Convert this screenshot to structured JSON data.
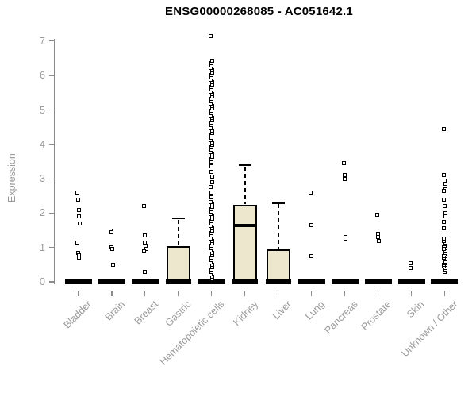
{
  "page": {
    "background": "#ffffff"
  },
  "chart_data": {
    "type": "boxplot",
    "title": "ENSG00000268085 - AC051642.1",
    "ylabel": "Expression",
    "xlabel": "",
    "ylim": [
      0,
      7
    ],
    "yticks": [
      0,
      1,
      2,
      3,
      4,
      5,
      6,
      7
    ],
    "grid": false,
    "legend_position": "none",
    "box_fill": "#ece7cd",
    "box_border": "#000000",
    "axis_color": "#8a8a8a",
    "tick_label_color": "#9a9a9a",
    "title_color": "#000000",
    "categories": [
      "Bladder",
      "Brain",
      "Breast",
      "Gastric",
      "Hematopoietic cells",
      "Kidney",
      "Liver",
      "Lung",
      "Pancreas",
      "Prostate",
      "Skin",
      "Unknown / Other"
    ],
    "series": [
      {
        "category": "Bladder",
        "q1": 0,
        "median": 0,
        "q3": 0,
        "whisker_low": 0,
        "whisker_high": 0,
        "outliers": [
          2.6,
          2.4,
          2.1,
          1.9,
          1.7,
          1.15,
          0.85,
          0.78,
          0.7
        ]
      },
      {
        "category": "Brain",
        "q1": 0,
        "median": 0,
        "q3": 0,
        "whisker_low": 0,
        "whisker_high": 0,
        "outliers": [
          1.5,
          1.45,
          1.0,
          0.95,
          0.5
        ]
      },
      {
        "category": "Breast",
        "q1": 0,
        "median": 0,
        "q3": 0,
        "whisker_low": 0,
        "whisker_high": 0,
        "outliers": [
          2.2,
          1.35,
          1.15,
          1.05,
          0.95,
          0.9,
          0.3
        ]
      },
      {
        "category": "Gastric",
        "q1": 0,
        "median": 0.05,
        "q3": 1.05,
        "whisker_low": 0,
        "whisker_high": 1.85,
        "outliers": []
      },
      {
        "category": "Hematopoietic cells",
        "q1": 0,
        "median": 0,
        "q3": 0,
        "whisker_low": 0,
        "whisker_high": 0,
        "outliers": [
          7.15,
          3.35,
          3.2,
          3.05,
          2.9,
          2.75,
          2.6,
          2.45
        ],
        "dense_stacks": [
          {
            "min": 0.08,
            "max": 2.35,
            "step": 0.07
          },
          {
            "min": 3.5,
            "max": 6.45,
            "step": 0.07
          }
        ]
      },
      {
        "category": "Kidney",
        "q1": 0,
        "median": 1.65,
        "q3": 2.25,
        "whisker_low": 0,
        "whisker_high": 3.4,
        "outliers": []
      },
      {
        "category": "Liver",
        "q1": 0,
        "median": 0.05,
        "q3": 0.95,
        "whisker_low": 0,
        "whisker_high": 2.3,
        "outliers": []
      },
      {
        "category": "Lung",
        "q1": 0,
        "median": 0,
        "q3": 0,
        "whisker_low": 0,
        "whisker_high": 0,
        "outliers": [
          2.6,
          1.65,
          0.75
        ]
      },
      {
        "category": "Pancreas",
        "q1": 0,
        "median": 0,
        "q3": 0,
        "whisker_low": 0,
        "whisker_high": 0,
        "outliers": [
          3.45,
          3.1,
          3.0,
          1.3,
          1.25
        ]
      },
      {
        "category": "Prostate",
        "q1": 0,
        "median": 0,
        "q3": 0,
        "whisker_low": 0,
        "whisker_high": 0,
        "outliers": [
          1.95,
          1.4,
          1.3,
          1.2
        ]
      },
      {
        "category": "Skin",
        "q1": 0,
        "median": 0,
        "q3": 0,
        "whisker_low": 0,
        "whisker_high": 0,
        "outliers": [
          0.55,
          0.4
        ]
      },
      {
        "category": "Unknown / Other",
        "q1": 0,
        "median": 0,
        "q3": 0,
        "whisker_low": 0,
        "whisker_high": 0,
        "outliers": [
          4.45,
          3.1,
          2.95,
          2.85,
          2.7,
          2.65,
          2.4,
          2.2,
          2.0,
          1.9,
          1.75,
          1.55
        ],
        "dense_stacks": [
          {
            "min": 0.3,
            "max": 1.25,
            "step": 0.05
          }
        ]
      }
    ]
  }
}
